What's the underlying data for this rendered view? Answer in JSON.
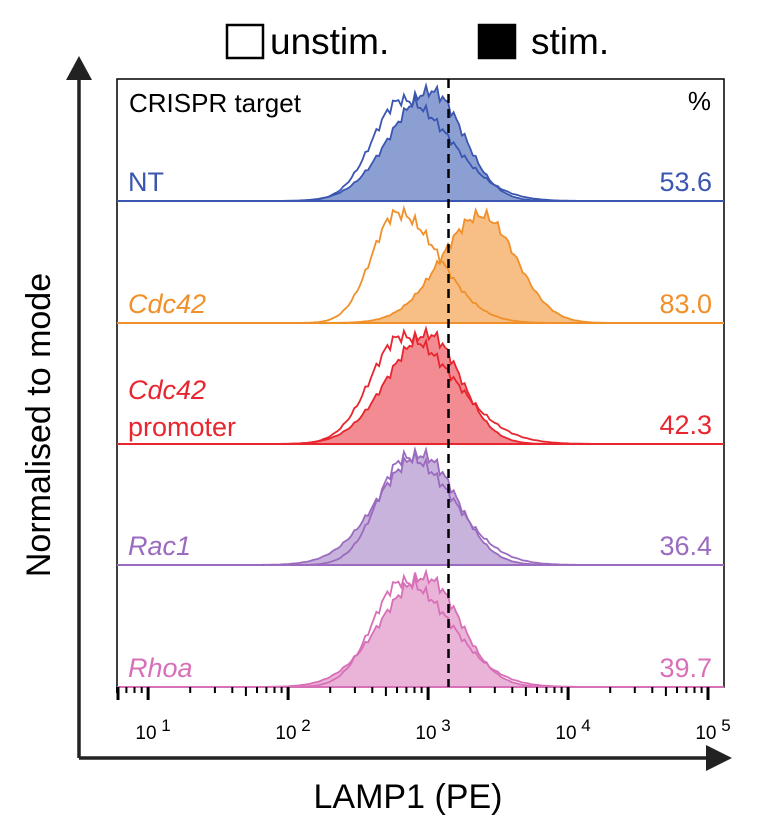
{
  "chart_data": {
    "type": "histogram-overlay",
    "title": "",
    "xlabel": "LAMP1 (PE)",
    "ylabel": "Normalised to mode",
    "x_scale": "log10",
    "xlim": [
      6,
      130000
    ],
    "x_ticks": [
      {
        "value": 10,
        "base": "10",
        "exp": "1"
      },
      {
        "value": 100,
        "base": "10",
        "exp": "2"
      },
      {
        "value": 1000,
        "base": "10",
        "exp": "3"
      },
      {
        "value": 10000,
        "base": "10",
        "exp": "4"
      },
      {
        "value": 100000,
        "base": "10",
        "exp": "5"
      }
    ],
    "gate_threshold": 1400,
    "legend": {
      "unstim_label": "unstim.",
      "stim_label": "stim."
    },
    "panel_header": {
      "left": "CRISPR target",
      "right": "%"
    },
    "panels": [
      {
        "target": "NT",
        "target_line2": "",
        "italic": false,
        "color": "#3b56b0",
        "fill": "#8c9fd2",
        "percent": "53.6",
        "unstim": {
          "peak": 650,
          "sd": 0.3,
          "skew": -0.3,
          "height": 0.92
        },
        "stim": {
          "peak": 1050,
          "sd": 0.25,
          "skew": 0.15,
          "height": 1.0
        }
      },
      {
        "target": "Cdc42",
        "target_line2": "",
        "italic": true,
        "color": "#f0902a",
        "fill": "#f7bf86",
        "percent": "83.0",
        "unstim": {
          "peak": 600,
          "sd": 0.26,
          "skew": -0.3,
          "height": 1.0
        },
        "stim": {
          "peak": 2400,
          "sd": 0.26,
          "skew": 0.1,
          "height": 0.98
        }
      },
      {
        "target": "Cdc42",
        "target_line2": "promoter",
        "italic": true,
        "color": "#e8262f",
        "fill": "#f28c92",
        "percent": "42.3",
        "unstim": {
          "peak": 650,
          "sd": 0.32,
          "skew": -0.3,
          "height": 0.98
        },
        "stim": {
          "peak": 1000,
          "sd": 0.25,
          "skew": 0.15,
          "height": 1.0
        }
      },
      {
        "target": "Rac1",
        "target_line2": "",
        "italic": true,
        "color": "#9b6bbf",
        "fill": "#c7b3dc",
        "percent": "36.4",
        "unstim": {
          "peak": 700,
          "sd": 0.29,
          "skew": -0.3,
          "height": 0.98
        },
        "stim": {
          "peak": 900,
          "sd": 0.27,
          "skew": 0.15,
          "height": 1.0
        }
      },
      {
        "target": "Rhoa",
        "target_line2": "",
        "italic": true,
        "color": "#d870b8",
        "fill": "#e9b4d8",
        "percent": "39.7",
        "unstim": {
          "peak": 650,
          "sd": 0.3,
          "skew": -0.3,
          "height": 0.96
        },
        "stim": {
          "peak": 950,
          "sd": 0.27,
          "skew": 0.15,
          "height": 1.0
        }
      }
    ]
  }
}
